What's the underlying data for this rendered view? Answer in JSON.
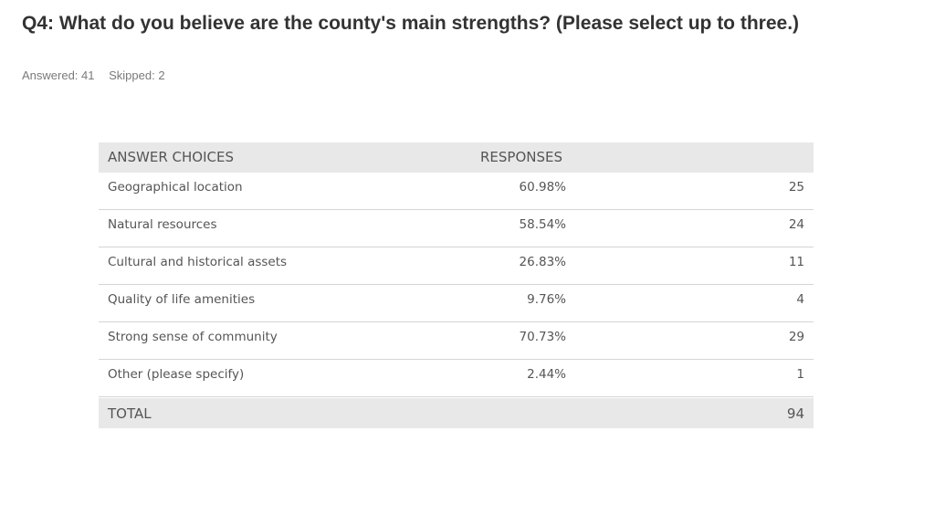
{
  "question": {
    "title": "Q4: What do you believe are the county's main strengths? (Please select up to three.)",
    "answered": "Answered: 41",
    "skipped": "Skipped: 2"
  },
  "table": {
    "header": {
      "choices": "ANSWER CHOICES",
      "responses": "RESPONSES"
    },
    "rows": [
      {
        "label": "Geographical location",
        "percent": "60.98%",
        "count": "25"
      },
      {
        "label": "Natural resources",
        "percent": "58.54%",
        "count": "24"
      },
      {
        "label": "Cultural and historical assets",
        "percent": "26.83%",
        "count": "11"
      },
      {
        "label": "Quality of life amenities",
        "percent": "9.76%",
        "count": "4"
      },
      {
        "label": "Strong sense of community",
        "percent": "70.73%",
        "count": "29"
      },
      {
        "label": "Other (please specify)",
        "percent": "2.44%",
        "count": "1"
      }
    ],
    "total": {
      "label": "TOTAL",
      "value": "94"
    }
  }
}
